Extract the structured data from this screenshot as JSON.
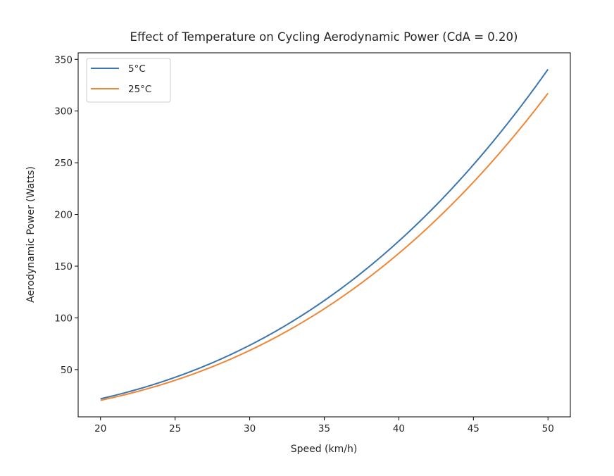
{
  "chart_data": {
    "type": "line",
    "title": "Effect of Temperature on Cycling Aerodynamic Power (CdA = 0.20)",
    "xlabel": "Speed (km/h)",
    "ylabel": "Aerodynamic Power (Watts)",
    "xlim": [
      18.5,
      51.5
    ],
    "ylim": [
      4.3,
      356.3
    ],
    "xticks": [
      20,
      25,
      30,
      35,
      40,
      45,
      50
    ],
    "xtick_labels": [
      "20",
      "25",
      "30",
      "35",
      "40",
      "45",
      "50"
    ],
    "yticks": [
      50,
      100,
      150,
      200,
      250,
      300,
      350
    ],
    "ytick_labels": [
      "50",
      "100",
      "150",
      "200",
      "250",
      "300",
      "350"
    ],
    "grid": false,
    "legend_position": "top-left",
    "x": [
      20,
      22.5,
      25,
      27.5,
      30,
      32.5,
      35,
      37.5,
      40,
      42.5,
      45,
      47.5,
      50
    ],
    "series": [
      {
        "name": "5°C",
        "color": "#3b75af",
        "values": [
          21.8,
          31.0,
          42.5,
          56.6,
          73.5,
          93.4,
          116.7,
          143.6,
          174.2,
          209.0,
          248.1,
          291.8,
          340.3
        ]
      },
      {
        "name": "25°C",
        "color": "#ef8636",
        "values": [
          20.3,
          28.9,
          39.6,
          52.8,
          68.5,
          87.1,
          108.8,
          133.8,
          162.4,
          194.8,
          231.3,
          272.0,
          317.2
        ]
      }
    ]
  }
}
